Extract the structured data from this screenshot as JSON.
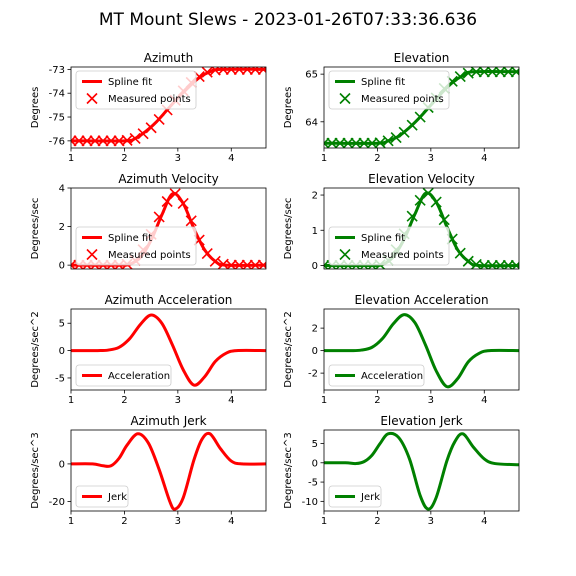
{
  "title": "MT Mount Slews - 2023-01-26T07:33:36.636",
  "colors": {
    "azimuth": "#ff0000",
    "elevation": "#008000"
  },
  "chart_data": [
    {
      "type": "line",
      "title": "Azimuth",
      "ylabel": "Degrees",
      "xlim": [
        1.0,
        4.65
      ],
      "ylim": [
        -76.3,
        -72.9
      ],
      "xticks": [
        "1",
        "2",
        "3",
        "4"
      ],
      "yticks": [
        "-73",
        "-74",
        "-75",
        "-76"
      ],
      "legend": "top-left",
      "series": [
        {
          "name": "Spline fit",
          "style": "line",
          "x": [
            1.0,
            2.0,
            2.2,
            2.4,
            2.6,
            2.8,
            3.0,
            3.2,
            3.4,
            3.6,
            3.8,
            4.65
          ],
          "y": [
            -76.0,
            -76.0,
            -75.9,
            -75.6,
            -75.2,
            -74.7,
            -74.2,
            -73.75,
            -73.35,
            -73.1,
            -73.0,
            -73.0
          ]
        },
        {
          "name": "Measured points",
          "style": "marker",
          "x": [
            1.0,
            1.15,
            1.3,
            1.45,
            1.6,
            1.75,
            1.9,
            2.05,
            2.2,
            2.35,
            2.5,
            2.65,
            2.8,
            2.95,
            3.1,
            3.25,
            3.4,
            3.55,
            3.7,
            3.85,
            4.0,
            4.15,
            4.3,
            4.45,
            4.6
          ],
          "y": [
            -76.0,
            -76.0,
            -76.0,
            -76.0,
            -76.0,
            -76.0,
            -76.0,
            -75.98,
            -75.9,
            -75.7,
            -75.45,
            -75.1,
            -74.7,
            -74.3,
            -73.9,
            -73.55,
            -73.3,
            -73.12,
            -73.03,
            -73.0,
            -73.0,
            -73.0,
            -73.0,
            -73.0,
            -73.0
          ]
        }
      ]
    },
    {
      "type": "line",
      "title": "Elevation",
      "ylabel": "Degrees",
      "xlim": [
        1.0,
        4.65
      ],
      "ylim": [
        63.45,
        65.15
      ],
      "xticks": [
        "1",
        "2",
        "3",
        "4"
      ],
      "yticks": [
        "65",
        "64"
      ],
      "legend": "top-left",
      "series": [
        {
          "name": "Spline fit",
          "style": "line",
          "x": [
            1.0,
            2.0,
            2.2,
            2.4,
            2.6,
            2.8,
            3.0,
            3.2,
            3.4,
            3.6,
            3.8,
            4.65
          ],
          "y": [
            63.55,
            63.55,
            63.6,
            63.7,
            63.88,
            64.1,
            64.35,
            64.6,
            64.82,
            64.97,
            65.05,
            65.05
          ]
        },
        {
          "name": "Measured points",
          "style": "marker",
          "x": [
            1.0,
            1.15,
            1.3,
            1.45,
            1.6,
            1.75,
            1.9,
            2.05,
            2.2,
            2.35,
            2.5,
            2.65,
            2.8,
            2.95,
            3.1,
            3.25,
            3.4,
            3.55,
            3.7,
            3.85,
            4.0,
            4.15,
            4.3,
            4.45,
            4.6
          ],
          "y": [
            63.55,
            63.55,
            63.55,
            63.55,
            63.55,
            63.55,
            63.55,
            63.56,
            63.6,
            63.67,
            63.78,
            63.93,
            64.1,
            64.3,
            64.5,
            64.7,
            64.85,
            64.95,
            65.02,
            65.05,
            65.05,
            65.05,
            65.05,
            65.05,
            65.05
          ]
        }
      ]
    },
    {
      "type": "line",
      "title": "Azimuth Velocity",
      "ylabel": "Degrees/sec",
      "xlim": [
        1.0,
        4.65
      ],
      "ylim": [
        -0.2,
        4.0
      ],
      "xticks": [],
      "yticks": [
        "4",
        "2",
        "0"
      ],
      "legend": "lower-left",
      "series": [
        {
          "name": "Spline fit",
          "style": "line",
          "x": [
            1.0,
            1.9,
            2.1,
            2.3,
            2.5,
            2.7,
            2.9,
            3.1,
            3.3,
            3.5,
            3.7,
            3.9,
            4.65
          ],
          "y": [
            0.0,
            0.0,
            0.05,
            0.4,
            1.3,
            2.6,
            3.7,
            3.2,
            1.9,
            0.8,
            0.2,
            0.0,
            0.0
          ]
        },
        {
          "name": "Measured points",
          "style": "marker",
          "x": [
            1.0,
            1.15,
            1.3,
            1.45,
            1.6,
            1.75,
            1.9,
            2.05,
            2.2,
            2.35,
            2.5,
            2.65,
            2.8,
            2.95,
            3.1,
            3.25,
            3.4,
            3.55,
            3.7,
            3.85,
            4.0,
            4.15,
            4.3,
            4.45,
            4.6
          ],
          "y": [
            0.0,
            0.0,
            0.0,
            0.0,
            0.0,
            0.0,
            0.0,
            0.05,
            0.25,
            0.8,
            1.6,
            2.5,
            3.3,
            3.7,
            3.2,
            2.3,
            1.3,
            0.6,
            0.2,
            0.05,
            0.0,
            0.0,
            0.0,
            0.0,
            0.0
          ]
        }
      ]
    },
    {
      "type": "line",
      "title": "Elevation Velocity",
      "ylabel": "Degrees/sec",
      "xlim": [
        1.0,
        4.65
      ],
      "ylim": [
        -0.1,
        2.2
      ],
      "xticks": [],
      "yticks": [
        "2",
        "1",
        "0"
      ],
      "legend": "lower-left",
      "series": [
        {
          "name": "Spline fit",
          "style": "line",
          "x": [
            1.0,
            1.9,
            2.1,
            2.3,
            2.5,
            2.7,
            2.9,
            3.1,
            3.3,
            3.5,
            3.7,
            3.9,
            4.65
          ],
          "y": [
            0.0,
            0.0,
            0.03,
            0.25,
            0.75,
            1.45,
            2.05,
            1.8,
            1.1,
            0.45,
            0.12,
            0.0,
            0.0
          ]
        },
        {
          "name": "Measured points",
          "style": "marker",
          "x": [
            1.0,
            1.15,
            1.3,
            1.45,
            1.6,
            1.75,
            1.9,
            2.05,
            2.2,
            2.35,
            2.5,
            2.65,
            2.8,
            2.95,
            3.1,
            3.25,
            3.4,
            3.55,
            3.7,
            3.85,
            4.0,
            4.15,
            4.3,
            4.45,
            4.6
          ],
          "y": [
            0.0,
            0.0,
            0.0,
            0.0,
            0.0,
            0.0,
            0.0,
            0.02,
            0.15,
            0.45,
            0.9,
            1.4,
            1.85,
            2.05,
            1.8,
            1.3,
            0.75,
            0.35,
            0.12,
            0.03,
            0.0,
            0.0,
            0.0,
            0.0,
            0.0
          ]
        }
      ]
    },
    {
      "type": "line",
      "title": "Azimuth Acceleration",
      "ylabel": "Degrees/sec^2",
      "xlim": [
        1.0,
        4.65
      ],
      "ylim": [
        -7.2,
        7.6
      ],
      "xticks": [
        "1",
        "2",
        "3",
        "4"
      ],
      "yticks": [
        "5",
        "0",
        "-5"
      ],
      "legend": "lower-left",
      "series": [
        {
          "name": "Acceleration",
          "style": "line",
          "x": [
            1.0,
            1.5,
            1.7,
            1.9,
            2.1,
            2.3,
            2.5,
            2.7,
            2.9,
            3.1,
            3.3,
            3.5,
            3.7,
            3.9,
            4.1,
            4.65
          ],
          "y": [
            0.0,
            0.0,
            0.1,
            0.6,
            2.2,
            4.8,
            6.5,
            5.0,
            1.0,
            -3.5,
            -6.3,
            -4.8,
            -2.0,
            -0.5,
            0.0,
            0.0
          ]
        }
      ]
    },
    {
      "type": "line",
      "title": "Elevation Acceleration",
      "ylabel": "Degrees/sec^2",
      "xlim": [
        1.0,
        4.65
      ],
      "ylim": [
        -3.5,
        3.7
      ],
      "xticks": [
        "1",
        "2",
        "3",
        "4"
      ],
      "yticks": [
        "2",
        "0",
        "-2"
      ],
      "legend": "lower-left",
      "series": [
        {
          "name": "Acceleration",
          "style": "line",
          "x": [
            1.0,
            1.5,
            1.7,
            1.9,
            2.1,
            2.3,
            2.5,
            2.7,
            2.9,
            3.1,
            3.3,
            3.5,
            3.7,
            3.9,
            4.1,
            4.65
          ],
          "y": [
            0.0,
            0.0,
            0.05,
            0.3,
            1.1,
            2.4,
            3.2,
            2.5,
            0.5,
            -1.8,
            -3.2,
            -2.5,
            -1.0,
            -0.25,
            0.0,
            0.0
          ]
        }
      ]
    },
    {
      "type": "line",
      "title": "Azimuth Jerk",
      "ylabel": "Degrees/sec^3",
      "xlim": [
        1.0,
        4.65
      ],
      "ylim": [
        -25.0,
        18.0
      ],
      "xticks": [
        "1",
        "2",
        "3",
        "4"
      ],
      "yticks": [
        "0",
        "-20"
      ],
      "legend": "lower-left",
      "series": [
        {
          "name": "Jerk",
          "style": "line",
          "x": [
            1.0,
            1.4,
            1.6,
            1.75,
            1.9,
            2.05,
            2.25,
            2.45,
            2.65,
            2.85,
            2.95,
            3.1,
            3.3,
            3.45,
            3.6,
            3.8,
            4.0,
            4.2,
            4.65
          ],
          "y": [
            0.0,
            0.0,
            -1.0,
            -1.0,
            3.0,
            10.0,
            16.0,
            11.0,
            -3.0,
            -20.0,
            -24.0,
            -18.0,
            2.0,
            13.0,
            16.0,
            8.0,
            1.5,
            0.0,
            0.0
          ]
        }
      ]
    },
    {
      "type": "line",
      "title": "Elevation Jerk",
      "ylabel": "Degrees/sec^3",
      "xlim": [
        1.0,
        4.65
      ],
      "ylim": [
        -12.5,
        8.5
      ],
      "xticks": [
        "1",
        "2",
        "3",
        "4"
      ],
      "yticks": [
        "5",
        "0",
        "-5",
        "-10"
      ],
      "legend": "lower-left",
      "series": [
        {
          "name": "Jerk",
          "style": "line",
          "x": [
            1.0,
            1.4,
            1.6,
            1.75,
            1.9,
            2.05,
            2.2,
            2.4,
            2.6,
            2.8,
            2.95,
            3.1,
            3.3,
            3.45,
            3.6,
            3.8,
            4.0,
            4.2,
            4.65
          ],
          "y": [
            0.0,
            0.0,
            -0.2,
            0.3,
            2.0,
            5.0,
            7.5,
            6.5,
            1.0,
            -8.5,
            -12.0,
            -9.0,
            0.5,
            5.5,
            7.5,
            4.0,
            1.0,
            -0.2,
            -0.5
          ]
        }
      ]
    }
  ]
}
